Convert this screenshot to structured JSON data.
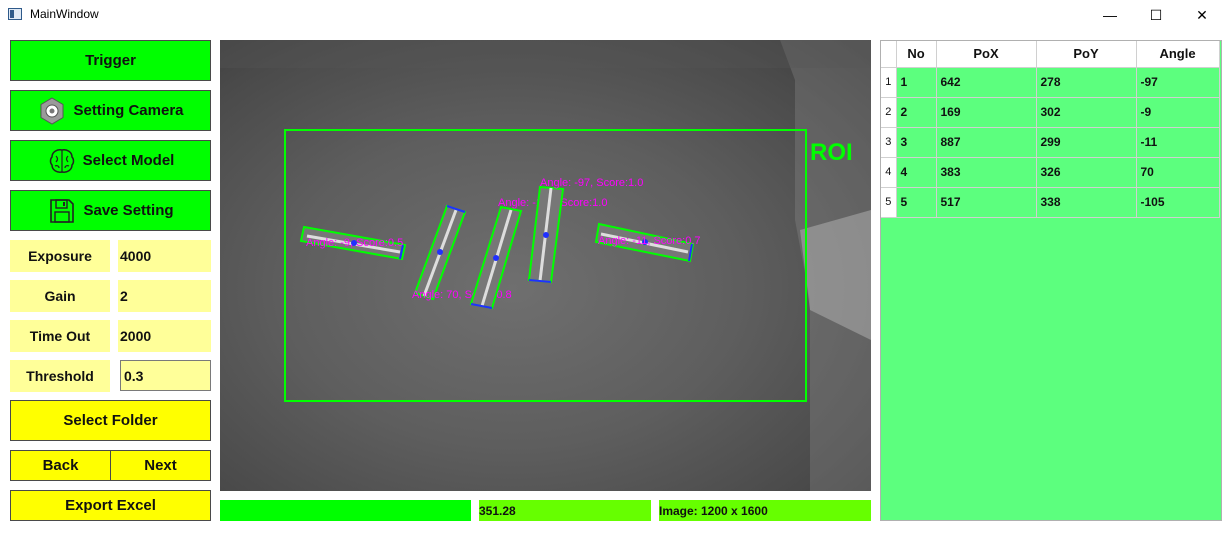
{
  "window": {
    "title": "MainWindow",
    "minimize": "—",
    "maximize": "☐",
    "close": "✕"
  },
  "buttons": {
    "trigger": "Trigger",
    "setting_camera": "Setting Camera",
    "select_model": "Select Model",
    "save_setting": "Save Setting",
    "select_folder": "Select Folder",
    "back": "Back",
    "next": "Next",
    "export_excel": "Export Excel"
  },
  "params": [
    {
      "label": "Exposure",
      "value": "4000"
    },
    {
      "label": "Gain",
      "value": "2"
    },
    {
      "label": "Time Out",
      "value": "2000"
    },
    {
      "label": "Threshold",
      "value": "0.3"
    }
  ],
  "viewer": {
    "roi_label": "ROI",
    "annotations": [
      "Angle: -9, Score:0.5",
      "Angle: 70, Score:0.8",
      "Angle: -105, Score:1.0",
      "Angle: -97, Score:1.0",
      "Angle: -11, Score:0.7"
    ]
  },
  "status": {
    "progress": "",
    "time": "351.28",
    "image_size": "Image: 1200 x 1600"
  },
  "table": {
    "columns": [
      "No",
      "PoX",
      "PoY",
      "Angle"
    ],
    "rows": [
      {
        "index": "1",
        "no": "1",
        "pox": "642",
        "poy": "278",
        "angle": "-97"
      },
      {
        "index": "2",
        "no": "2",
        "pox": "169",
        "poy": "302",
        "angle": "-9"
      },
      {
        "index": "3",
        "no": "3",
        "pox": "887",
        "poy": "299",
        "angle": "-11"
      },
      {
        "index": "4",
        "no": "4",
        "pox": "383",
        "poy": "326",
        "angle": "70"
      },
      {
        "index": "5",
        "no": "5",
        "pox": "517",
        "poy": "338",
        "angle": "-105"
      }
    ]
  },
  "colors": {
    "accent_green": "#00ff00",
    "accent_yellow": "#ffff00",
    "table_bg": "#5cff7e",
    "roi": "#00ff00",
    "label_magenta": "#ff00ff"
  }
}
